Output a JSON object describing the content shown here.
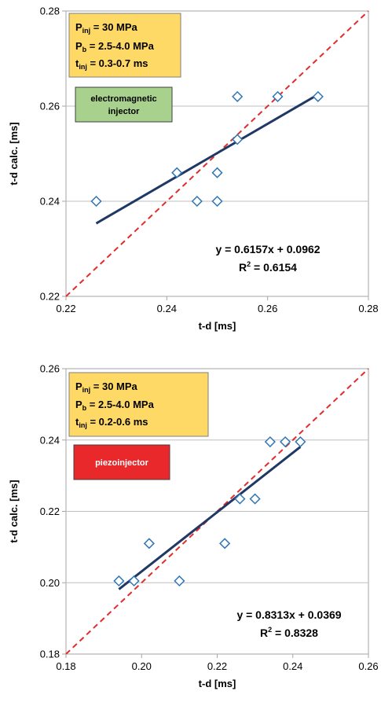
{
  "chart_data": [
    {
      "type": "scatter",
      "xlabel": "t-d [ms]",
      "ylabel": "t-d calc. [ms]",
      "xlim": [
        0.22,
        0.28
      ],
      "ylim": [
        0.22,
        0.28
      ],
      "xticks": [
        "0.22",
        "0.24",
        "0.26",
        "0.28"
      ],
      "yticks": [
        "0.22",
        "0.24",
        "0.26",
        "0.28"
      ],
      "grid": "horizontal",
      "conditions": {
        "p_inj": {
          "label": "P",
          "sub": "inj",
          "value": " = 30 MPa"
        },
        "p_b": {
          "label": "P",
          "sub": "b",
          "value": " = 2.5-4.0 MPa"
        },
        "t_inj": {
          "label": "t",
          "sub": "inj",
          "value": " = 0.3-0.7 ms"
        }
      },
      "tag": {
        "label_lines": [
          "electromagnetic",
          "injector"
        ],
        "color": "#a9d18e"
      },
      "points": [
        {
          "x": 0.226,
          "y": 0.24
        },
        {
          "x": 0.242,
          "y": 0.246
        },
        {
          "x": 0.246,
          "y": 0.24
        },
        {
          "x": 0.25,
          "y": 0.24
        },
        {
          "x": 0.25,
          "y": 0.246
        },
        {
          "x": 0.254,
          "y": 0.253
        },
        {
          "x": 0.254,
          "y": 0.262
        },
        {
          "x": 0.262,
          "y": 0.262
        },
        {
          "x": 0.27,
          "y": 0.262
        }
      ],
      "trendline": {
        "slope": 0.6157,
        "intercept": 0.0962,
        "x_range": [
          0.226,
          0.27
        ],
        "color": "#1f3864"
      },
      "reference_line": {
        "type": "y=x",
        "color": "#e32c2c"
      },
      "equation": "y = 0.6157x + 0.0962",
      "r2": {
        "label": "R",
        "sup": "2",
        "value": " = 0.6154"
      },
      "marker_color": "#2e75b6"
    },
    {
      "type": "scatter",
      "xlabel": "t-d [ms]",
      "ylabel": "t-d calc. [ms]",
      "xlim": [
        0.18,
        0.26
      ],
      "ylim": [
        0.18,
        0.26
      ],
      "xticks": [
        "0.18",
        "0.20",
        "0.22",
        "0.24",
        "0.26"
      ],
      "yticks": [
        "0.18",
        "0.20",
        "0.22",
        "0.24",
        "0.26"
      ],
      "grid": "horizontal",
      "conditions": {
        "p_inj": {
          "label": "P",
          "sub": "inj",
          "value": " = 30 MPa"
        },
        "p_b": {
          "label": "P",
          "sub": "b",
          "value": " = 2.5-4.0 MPa"
        },
        "t_inj": {
          "label": "t",
          "sub": "inj",
          "value": " = 0.2-0.6 ms"
        }
      },
      "tag": {
        "label_lines": [
          "piezoinjector"
        ],
        "color": "#e8282b"
      },
      "points": [
        {
          "x": 0.194,
          "y": 0.2005
        },
        {
          "x": 0.198,
          "y": 0.2005
        },
        {
          "x": 0.202,
          "y": 0.211
        },
        {
          "x": 0.21,
          "y": 0.2005
        },
        {
          "x": 0.222,
          "y": 0.211
        },
        {
          "x": 0.226,
          "y": 0.2235
        },
        {
          "x": 0.23,
          "y": 0.2235
        },
        {
          "x": 0.234,
          "y": 0.2395
        },
        {
          "x": 0.238,
          "y": 0.2395
        },
        {
          "x": 0.242,
          "y": 0.2395
        }
      ],
      "trendline": {
        "slope": 0.8313,
        "intercept": 0.0369,
        "x_range": [
          0.194,
          0.242
        ],
        "color": "#1f3864"
      },
      "reference_line": {
        "type": "y=x",
        "color": "#e32c2c"
      },
      "equation": "y = 0.8313x + 0.0369",
      "r2": {
        "label": "R",
        "sup": "2",
        "value": " = 0.8328"
      },
      "marker_color": "#2e75b6"
    }
  ]
}
